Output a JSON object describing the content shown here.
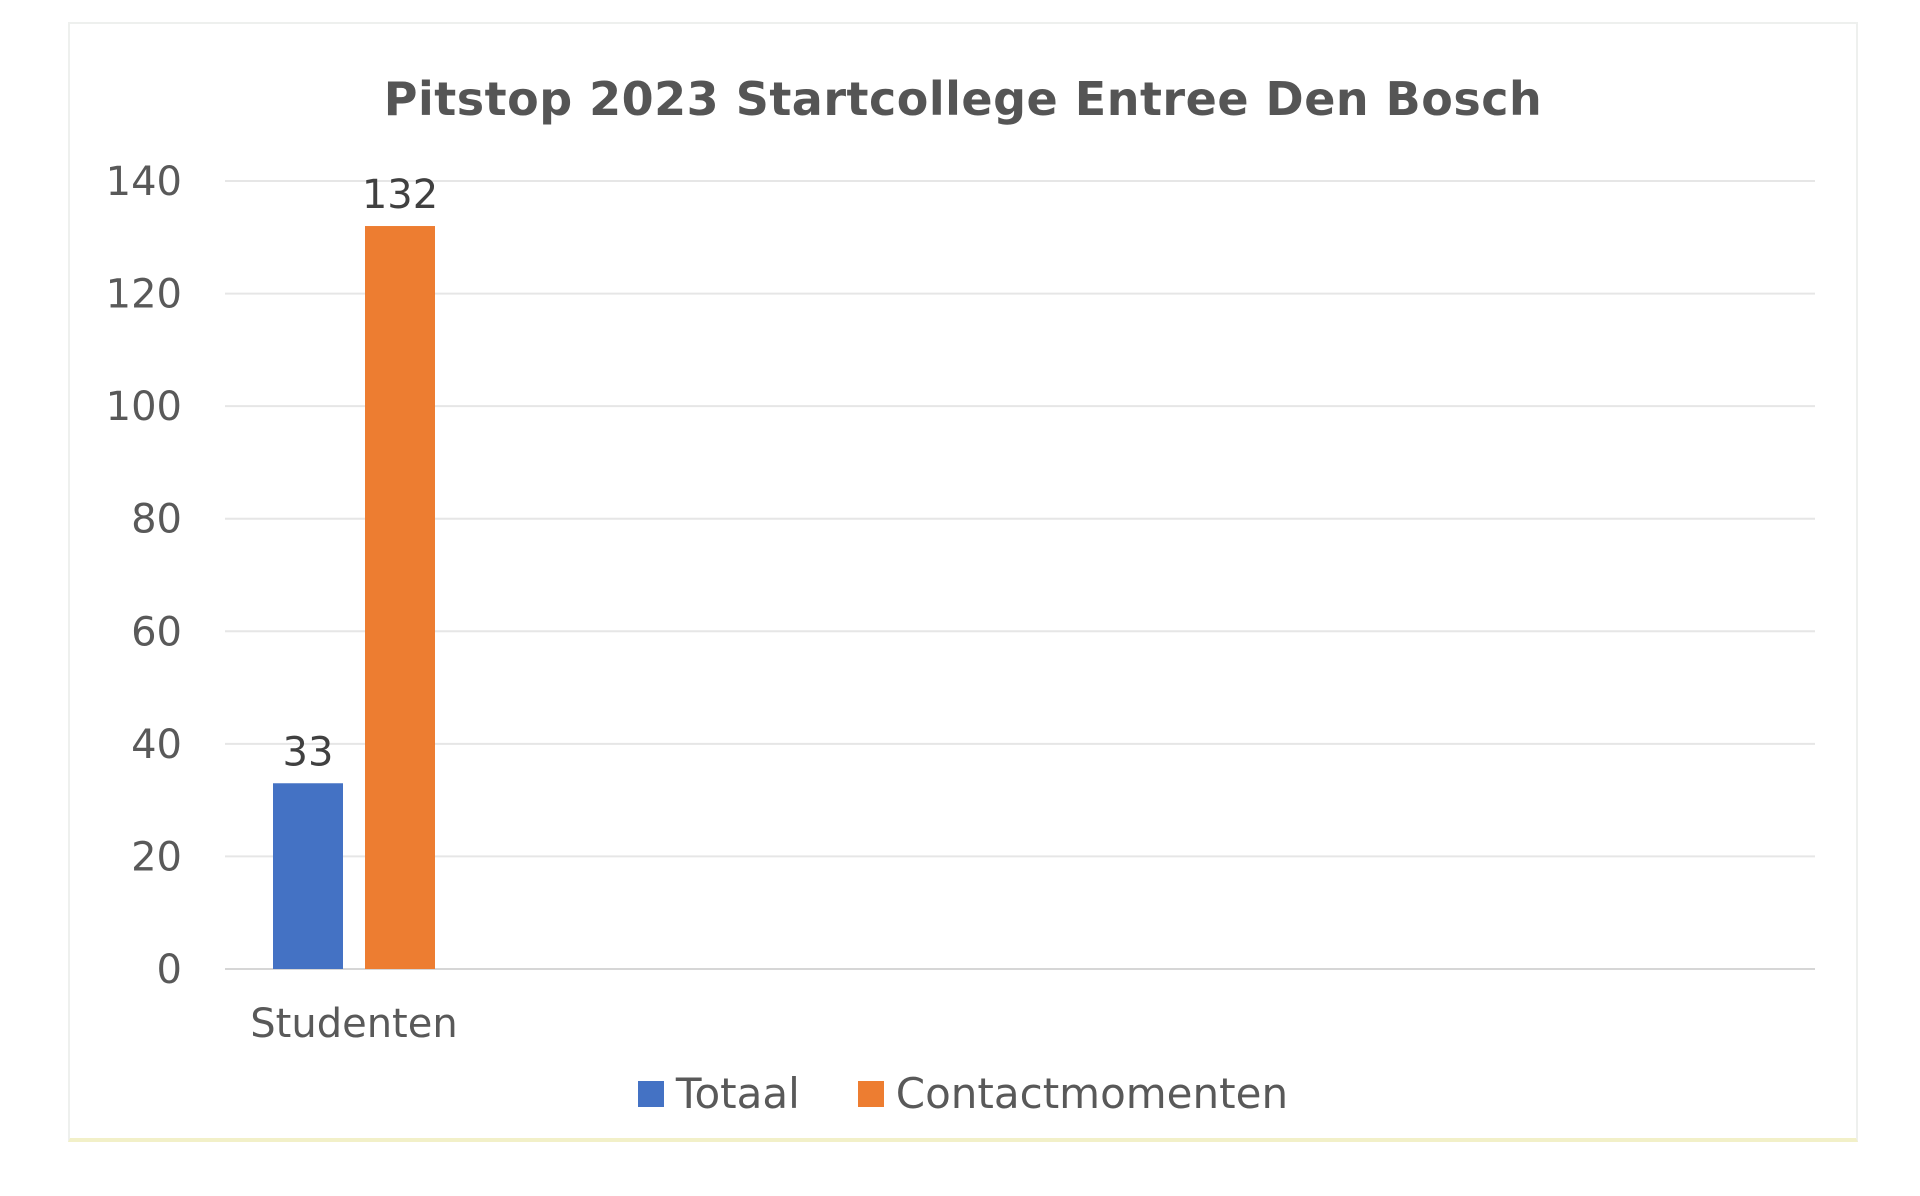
{
  "chart_data": {
    "type": "bar",
    "title": "Pitstop 2023 Startcollege Entree Den Bosch",
    "categories": [
      "Studenten"
    ],
    "series": [
      {
        "name": "Totaal",
        "values": [
          33
        ],
        "color": "#4472C4"
      },
      {
        "name": "Contactmomenten",
        "values": [
          132
        ],
        "color": "#ED7D31"
      }
    ],
    "ylim": [
      0,
      140
    ],
    "yticks": [
      "0",
      "20",
      "40",
      "60",
      "80",
      "100",
      "120",
      "140"
    ],
    "grid": true,
    "legend": "bottom",
    "xlabel": "",
    "ylabel": ""
  }
}
